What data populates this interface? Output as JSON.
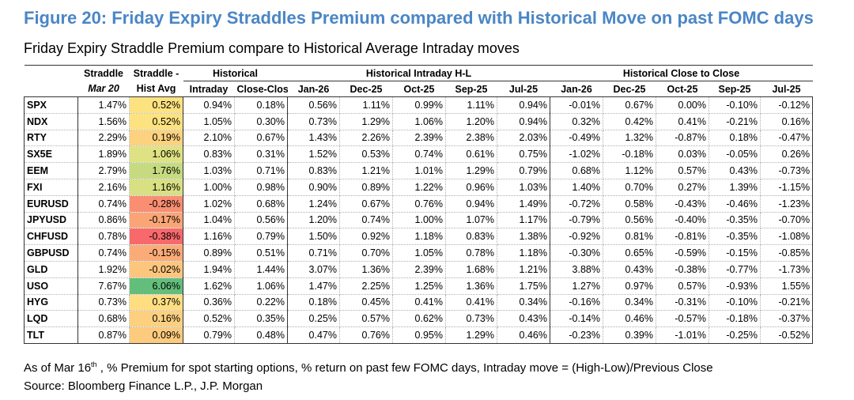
{
  "header": {
    "title": "Figure 20: Friday Expiry Straddles Premium compared with Historical Move on past FOMC days",
    "subtitle": "Friday Expiry Straddle Premium compare to Historical Average Intraday moves"
  },
  "table": {
    "header_top": [
      "Straddle",
      "Straddle -",
      "Historical",
      "Historical Intraday H-L",
      "Historical Close to Close"
    ],
    "header_bottom": [
      "Mar 20",
      "Hist Avg",
      "Intraday",
      "Close-Close",
      "Jan-26",
      "Dec-25",
      "Oct-25",
      "Sep-25",
      "Jul-25",
      "Jan-26",
      "Dec-25",
      "Oct-25",
      "Sep-25",
      "Jul-25"
    ],
    "rows": [
      [
        "SPX",
        "1.47%",
        "0.52%",
        "0.94%",
        "0.18%",
        "0.56%",
        "1.11%",
        "0.99%",
        "1.11%",
        "0.94%",
        "-0.01%",
        "0.67%",
        "0.00%",
        "-0.10%",
        "-0.12%"
      ],
      [
        "NDX",
        "1.56%",
        "0.52%",
        "1.05%",
        "0.30%",
        "0.73%",
        "1.29%",
        "1.06%",
        "1.20%",
        "0.94%",
        "0.32%",
        "0.42%",
        "0.41%",
        "-0.21%",
        "0.16%"
      ],
      [
        "RTY",
        "2.29%",
        "0.19%",
        "2.10%",
        "0.67%",
        "1.43%",
        "2.26%",
        "2.39%",
        "2.38%",
        "2.03%",
        "-0.49%",
        "1.32%",
        "-0.87%",
        "0.18%",
        "-0.47%"
      ],
      [
        "SX5E",
        "1.89%",
        "1.06%",
        "0.83%",
        "0.31%",
        "1.52%",
        "0.53%",
        "0.74%",
        "0.61%",
        "0.75%",
        "-1.02%",
        "-0.18%",
        "0.03%",
        "-0.05%",
        "0.26%"
      ],
      [
        "EEM",
        "2.79%",
        "1.76%",
        "1.03%",
        "0.71%",
        "0.83%",
        "1.21%",
        "1.01%",
        "1.29%",
        "0.79%",
        "0.68%",
        "1.12%",
        "0.57%",
        "0.43%",
        "-0.73%"
      ],
      [
        "FXI",
        "2.16%",
        "1.16%",
        "1.00%",
        "0.98%",
        "0.90%",
        "0.89%",
        "1.22%",
        "0.96%",
        "1.03%",
        "1.40%",
        "0.70%",
        "0.27%",
        "1.39%",
        "-1.15%"
      ],
      [
        "EURUSD",
        "0.74%",
        "-0.28%",
        "1.02%",
        "0.68%",
        "1.24%",
        "0.67%",
        "0.76%",
        "0.94%",
        "1.49%",
        "-0.72%",
        "0.58%",
        "-0.43%",
        "-0.46%",
        "-1.23%"
      ],
      [
        "JPYUSD",
        "0.86%",
        "-0.17%",
        "1.04%",
        "0.56%",
        "1.20%",
        "0.74%",
        "1.00%",
        "1.07%",
        "1.17%",
        "-0.79%",
        "0.56%",
        "-0.40%",
        "-0.35%",
        "-0.70%"
      ],
      [
        "CHFUSD",
        "0.78%",
        "-0.38%",
        "1.16%",
        "0.79%",
        "1.50%",
        "0.92%",
        "1.18%",
        "0.83%",
        "1.38%",
        "-0.92%",
        "0.81%",
        "-0.81%",
        "-0.35%",
        "-1.08%"
      ],
      [
        "GBPUSD",
        "0.74%",
        "-0.15%",
        "0.89%",
        "0.51%",
        "0.71%",
        "0.70%",
        "1.05%",
        "0.78%",
        "1.18%",
        "-0.30%",
        "0.65%",
        "-0.59%",
        "-0.15%",
        "-0.85%"
      ],
      [
        "GLD",
        "1.92%",
        "-0.02%",
        "1.94%",
        "1.44%",
        "3.07%",
        "1.36%",
        "2.39%",
        "1.68%",
        "1.21%",
        "3.88%",
        "0.43%",
        "-0.38%",
        "-0.77%",
        "-1.73%"
      ],
      [
        "USO",
        "7.67%",
        "6.06%",
        "1.62%",
        "1.06%",
        "1.47%",
        "2.25%",
        "1.25%",
        "1.36%",
        "1.75%",
        "1.27%",
        "0.97%",
        "0.57%",
        "-0.93%",
        "1.55%"
      ],
      [
        "HYG",
        "0.73%",
        "0.37%",
        "0.36%",
        "0.22%",
        "0.18%",
        "0.45%",
        "0.41%",
        "0.41%",
        "0.34%",
        "-0.16%",
        "0.34%",
        "-0.31%",
        "-0.10%",
        "-0.21%"
      ],
      [
        "LQD",
        "0.68%",
        "0.16%",
        "0.52%",
        "0.35%",
        "0.25%",
        "0.57%",
        "0.62%",
        "0.73%",
        "0.43%",
        "-0.14%",
        "0.46%",
        "-0.57%",
        "-0.18%",
        "-0.37%"
      ],
      [
        "TLT",
        "0.87%",
        "0.09%",
        "0.79%",
        "0.48%",
        "0.47%",
        "0.76%",
        "0.95%",
        "1.29%",
        "0.46%",
        "-0.23%",
        "0.39%",
        "-1.01%",
        "-0.25%",
        "-0.52%"
      ]
    ]
  },
  "footer": {
    "note": "As of Mar 16",
    "note_sup": "th",
    "note_rest": " , % Premium for spot starting options, % return on past few FOMC days, Intraday move = (High-Low)/Previous Close",
    "source": "Source: Bloomberg Finance L.P., J.P. Morgan"
  }
}
